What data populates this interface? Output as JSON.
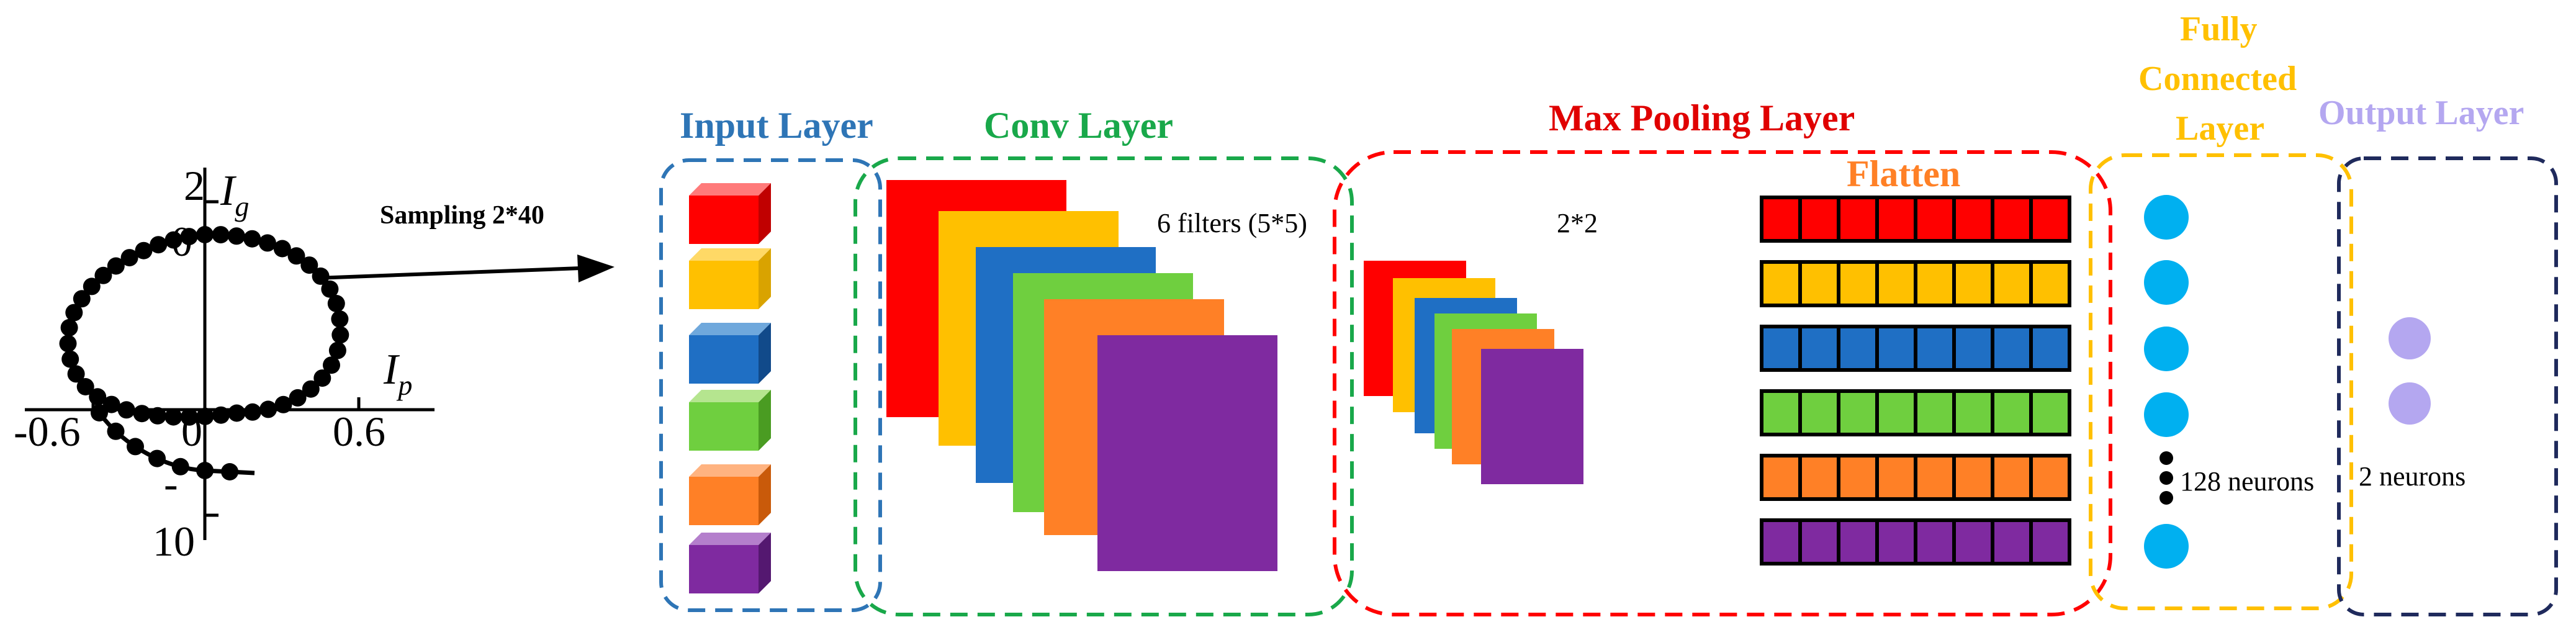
{
  "plot": {
    "y_top_tick": "2",
    "y_mid_tick": "0",
    "y_bottom_tick_sign": "-",
    "y_bottom_tick": "10",
    "x_left_tick": "-0.6",
    "x_zero_tick": "0",
    "x_right_tick": "0.6",
    "y_axis_symbol": "I",
    "y_axis_subscript": "g",
    "x_axis_symbol": "I",
    "x_axis_subscript": "p"
  },
  "sampling_label": "Sampling 2*40",
  "layers": {
    "input": "Input Layer",
    "conv": "Conv Layer",
    "maxpool": "Max Pooling Layer",
    "flatten": "Flatten",
    "fc_line1": "Fully",
    "fc_line2": "Connected",
    "fc_line3": "Layer",
    "output": "Output Layer"
  },
  "annotations": {
    "filters": "6 filters (5*5)",
    "pool_size": "2*2",
    "fc_neurons": "128 neurons",
    "out_neurons": "2 neurons"
  },
  "colors": {
    "red": "#ff0000",
    "yellow": "#ffc000",
    "blue": "#1f6fc4",
    "green": "#6fcf3f",
    "orange": "#ff8026",
    "purple": "#7f2aa0",
    "input_border": "#2e75b6",
    "conv_border": "#19a84a",
    "maxpool_border": "#ff0000",
    "fc_border": "#ffc000",
    "output_border": "#1f2a5c",
    "neuron_fc": "#00b0f0",
    "neuron_out": "#b4a7f0"
  }
}
